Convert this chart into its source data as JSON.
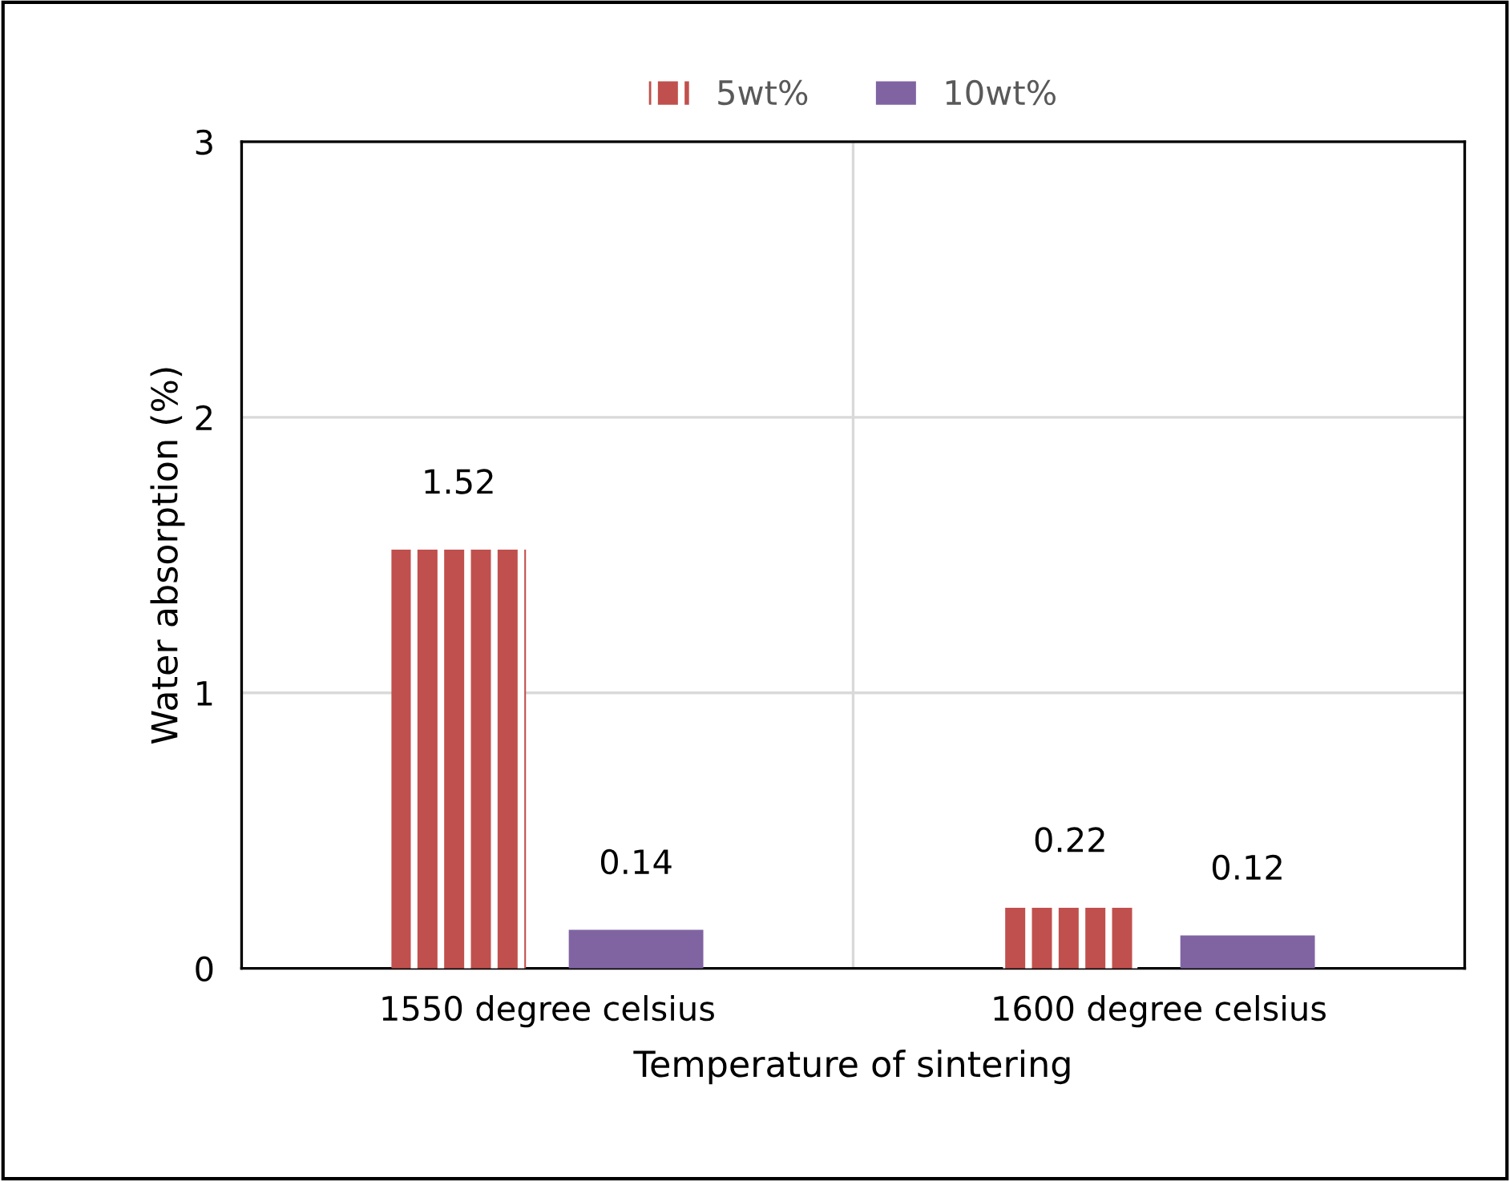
{
  "chart_data": {
    "type": "bar",
    "xlabel": "Temperature of sintering",
    "ylabel": "Water absorption (%)",
    "categories": [
      "1550 degree celsius",
      "1600 degree celsius"
    ],
    "series": [
      {
        "name": "5wt%",
        "color": "#c0504d",
        "values": [
          1.52,
          0.22
        ]
      },
      {
        "name": "10wt%",
        "color": "#8064a2",
        "values": [
          0.14,
          0.12
        ]
      }
    ],
    "ylim": [
      0,
      3
    ],
    "yticks": [
      0,
      1,
      2,
      3
    ],
    "grid": true,
    "legend": "top",
    "data_labels": true
  }
}
